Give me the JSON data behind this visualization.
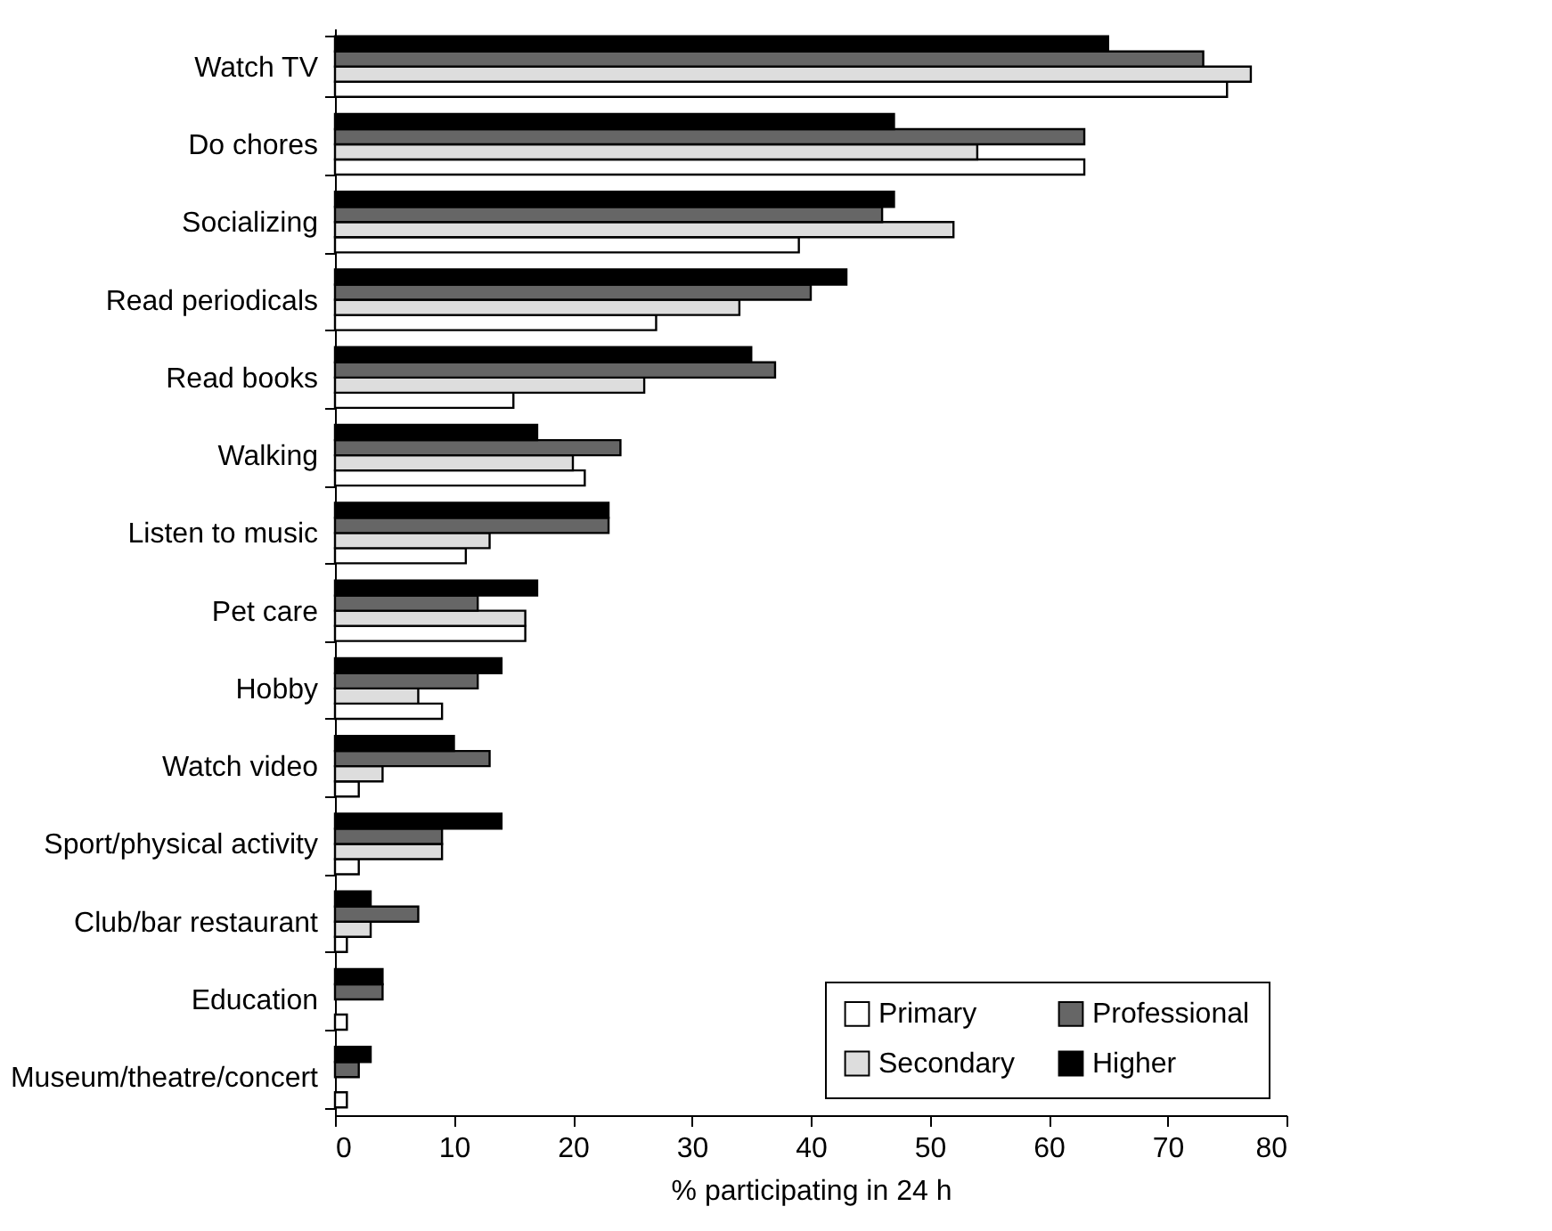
{
  "chart_data": {
    "type": "bar",
    "orientation": "horizontal",
    "xlabel": "% participating in 24 h",
    "categories": [
      "Watch TV",
      "Do chores",
      "Socializing",
      "Read periodicals",
      "Read books",
      "Walking",
      "Listen to music",
      "Pet care",
      "Hobby",
      "Watch video",
      "Sport/physical activity",
      "Club/bar restaurant",
      "Education",
      "Museum/theatre/concert"
    ],
    "series": [
      {
        "name": "Primary",
        "color": "#ffffff",
        "values": [
          75,
          63,
          39,
          27,
          15,
          21,
          11,
          16,
          9,
          2,
          2,
          1,
          1,
          1
        ]
      },
      {
        "name": "Secondary",
        "color": "#dddddd",
        "values": [
          77,
          54,
          52,
          34,
          26,
          20,
          13,
          16,
          7,
          4,
          9,
          3,
          null,
          null
        ]
      },
      {
        "name": "Professional",
        "color": "#666666",
        "values": [
          73,
          63,
          46,
          40,
          37,
          24,
          23,
          12,
          12,
          13,
          9,
          7,
          4,
          2
        ]
      },
      {
        "name": "Higher",
        "color": "#000000",
        "values": [
          65,
          47,
          47,
          43,
          35,
          17,
          23,
          17,
          14,
          10,
          14,
          3,
          4,
          3
        ]
      }
    ],
    "xlim": [
      0,
      80
    ],
    "xticks": [
      0,
      10,
      20,
      30,
      40,
      50,
      60,
      70,
      80
    ],
    "legend": "bottom right"
  }
}
